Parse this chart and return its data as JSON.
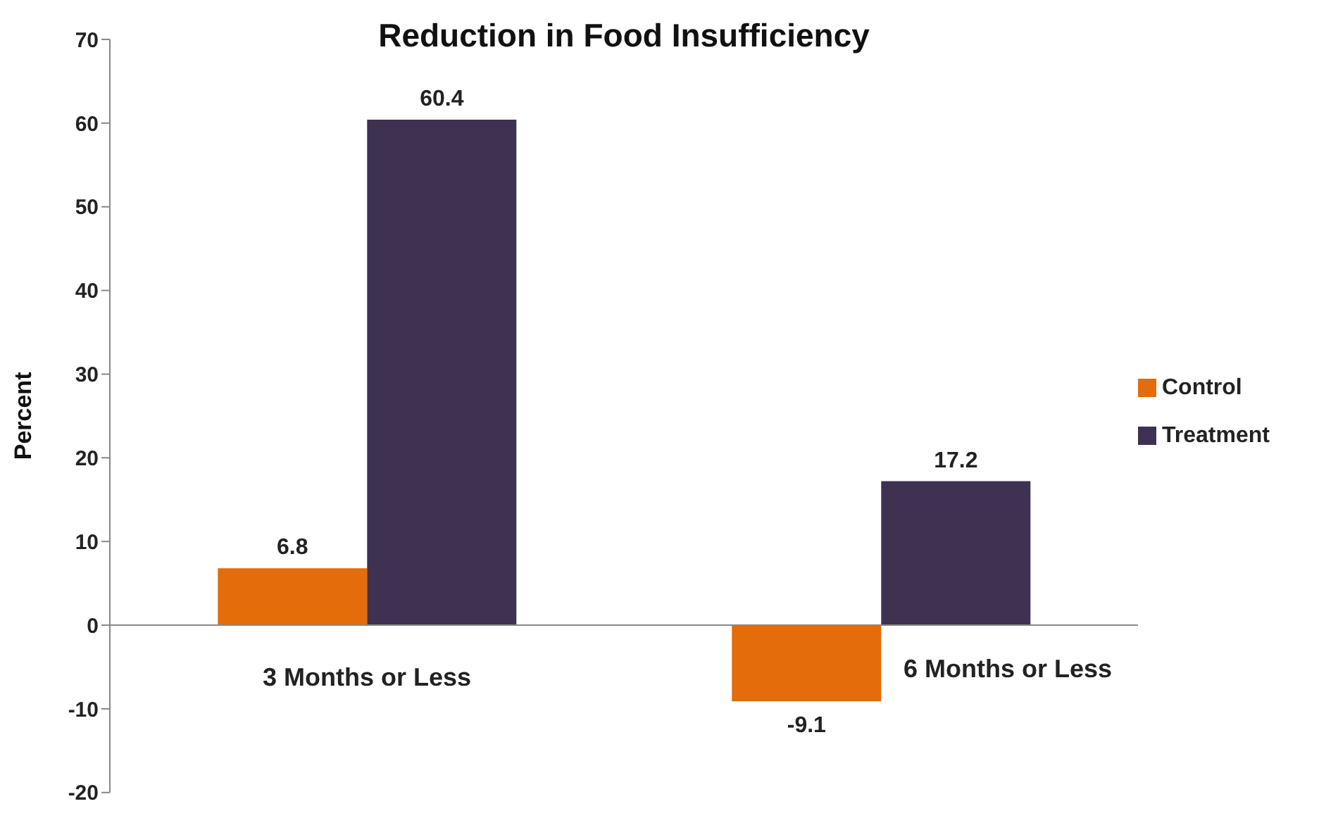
{
  "chart_data": {
    "type": "bar",
    "title": "Reduction in Food Insufficiency",
    "ylabel": "Percent",
    "categories": [
      "3 Months or Less",
      "6 Months or Less"
    ],
    "series": [
      {
        "name": "Control",
        "color": "#e46c0a",
        "values": [
          6.8,
          -9.1
        ]
      },
      {
        "name": "Treatment",
        "color": "#3f3151",
        "values": [
          60.4,
          17.2
        ]
      }
    ],
    "ylim": [
      -20,
      70
    ],
    "yticks": [
      -20,
      -10,
      0,
      10,
      20,
      30,
      40,
      50,
      60,
      70
    ],
    "legend": "right",
    "data_labels": true
  }
}
